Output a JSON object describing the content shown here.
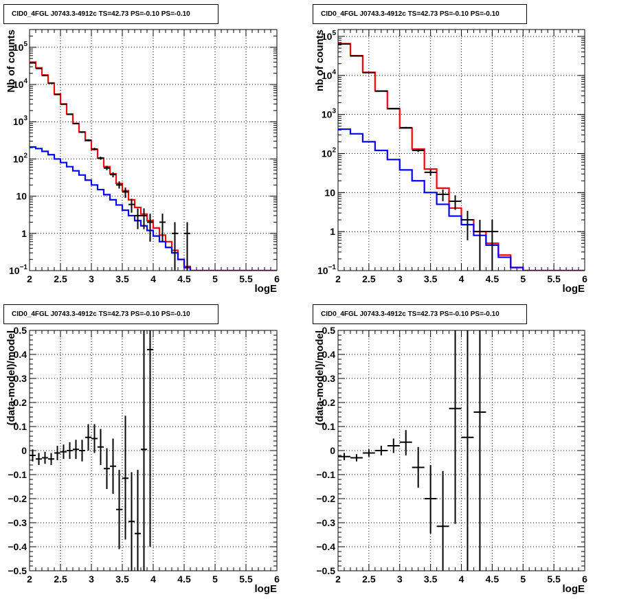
{
  "chart_data": [
    {
      "type": "step-line",
      "title": "CID0_4FGL J0743.3-4912c TS=42.73 PS=-0.10 PS=-0.10",
      "xlabel": "logE",
      "ylabel": "Nb of counts",
      "xlim": [
        2,
        6
      ],
      "ylim": [
        0.1,
        300000
      ],
      "yscale": "log",
      "grid": true,
      "x_ticks": [
        "2",
        "2.5",
        "3",
        "3.5",
        "4",
        "4.5",
        "5",
        "5.5",
        "6"
      ],
      "y_ticks": [
        {
          "v": 0.1,
          "base": "10",
          "exp": "−1"
        },
        {
          "v": 1,
          "base": "1",
          "exp": ""
        },
        {
          "v": 10,
          "base": "10",
          "exp": ""
        },
        {
          "v": 100,
          "base": "10",
          "exp": "2"
        },
        {
          "v": 1000,
          "base": "10",
          "exp": "3"
        },
        {
          "v": 10000,
          "base": "10",
          "exp": "4"
        },
        {
          "v": 100000,
          "base": "10",
          "exp": "5"
        }
      ],
      "bin_edges": [
        2.0,
        2.1,
        2.2,
        2.3,
        2.4,
        2.5,
        2.6,
        2.7,
        2.8,
        2.9,
        3.0,
        3.1,
        3.2,
        3.3,
        3.4,
        3.5,
        3.6,
        3.7,
        3.8,
        3.9,
        4.0,
        4.1,
        4.2,
        4.3,
        4.4,
        4.5,
        4.6,
        4.7,
        4.8,
        4.9,
        5.0,
        5.1,
        5.2,
        5.3,
        5.4,
        5.5,
        5.6,
        5.7,
        5.8,
        5.9,
        6.0
      ],
      "series": [
        {
          "color": "#ff0000",
          "values": [
            40000,
            28000,
            18000,
            11000,
            5500,
            3000,
            1600,
            900,
            530,
            310,
            180,
            105,
            62,
            40,
            22,
            14,
            8,
            5,
            3.3,
            2.2,
            1.4,
            0.9,
            0.6,
            0.35,
            0.2,
            0.13,
            0.1,
            0.1,
            0.1,
            0.1,
            0.1,
            0.1,
            0.1,
            0.1,
            0.1,
            0.1,
            0.1,
            0.1,
            0.1,
            0.1
          ]
        },
        {
          "color": "#0000ff",
          "values": [
            210,
            190,
            160,
            130,
            100,
            80,
            62,
            48,
            37,
            27,
            20,
            15,
            11,
            8,
            5.8,
            4.2,
            3.0,
            2.2,
            1.6,
            1.2,
            0.85,
            0.6,
            0.42,
            0.3,
            0.2,
            0.12,
            0.1,
            0.1,
            0.1,
            0.1,
            0.1,
            0.1,
            0.1,
            0.1,
            0.1,
            0.1,
            0.1,
            0.1,
            0.1,
            0.1
          ]
        }
      ],
      "points": [
        {
          "x": 2.05,
          "y": 38000,
          "lo": 37600,
          "hi": 38400,
          "xerr": 0.05
        },
        {
          "x": 2.15,
          "y": 27000,
          "lo": 26700,
          "hi": 27300,
          "xerr": 0.05
        },
        {
          "x": 2.25,
          "y": 17500,
          "lo": 17200,
          "hi": 17800,
          "xerr": 0.05
        },
        {
          "x": 2.35,
          "y": 10800,
          "lo": 10600,
          "hi": 11000,
          "xerr": 0.05
        },
        {
          "x": 2.45,
          "y": 5400,
          "lo": 5300,
          "hi": 5500,
          "xerr": 0.05
        },
        {
          "x": 2.55,
          "y": 2950,
          "lo": 2900,
          "hi": 3000,
          "xerr": 0.05
        },
        {
          "x": 2.65,
          "y": 1580,
          "lo": 1540,
          "hi": 1620,
          "xerr": 0.05
        },
        {
          "x": 2.75,
          "y": 890,
          "lo": 860,
          "hi": 920,
          "xerr": 0.05
        },
        {
          "x": 2.85,
          "y": 525,
          "lo": 500,
          "hi": 550,
          "xerr": 0.05
        },
        {
          "x": 2.95,
          "y": 320,
          "lo": 302,
          "hi": 338,
          "xerr": 0.05
        },
        {
          "x": 3.05,
          "y": 185,
          "lo": 171,
          "hi": 199,
          "xerr": 0.05
        },
        {
          "x": 3.15,
          "y": 105,
          "lo": 95,
          "hi": 115,
          "xerr": 0.05
        },
        {
          "x": 3.25,
          "y": 57,
          "lo": 50,
          "hi": 65,
          "xerr": 0.05
        },
        {
          "x": 3.35,
          "y": 38,
          "lo": 32,
          "hi": 44,
          "xerr": 0.05
        },
        {
          "x": 3.45,
          "y": 20,
          "lo": 16,
          "hi": 25,
          "xerr": 0.05
        },
        {
          "x": 3.55,
          "y": 13,
          "lo": 9,
          "hi": 17,
          "xerr": 0.05
        },
        {
          "x": 3.65,
          "y": 6,
          "lo": 3.6,
          "hi": 8.5,
          "xerr": 0.05
        },
        {
          "x": 3.75,
          "y": 3,
          "lo": 1.3,
          "hi": 4.7,
          "xerr": 0.05
        },
        {
          "x": 3.85,
          "y": 3,
          "lo": 1.3,
          "hi": 4.7,
          "xerr": 0.05
        },
        {
          "x": 3.95,
          "y": 2,
          "lo": 0.6,
          "hi": 3.4,
          "xerr": 0.05
        },
        {
          "x": 4.15,
          "y": 2,
          "lo": 0.6,
          "hi": 3.4,
          "xerr": 0.05
        },
        {
          "x": 4.35,
          "y": 1,
          "lo": 0.1,
          "hi": 2.0,
          "xerr": 0.05
        },
        {
          "x": 4.55,
          "y": 1,
          "lo": 0.1,
          "hi": 2.0,
          "xerr": 0.05
        }
      ]
    },
    {
      "type": "step-line",
      "title": "CID0_4FGL J0743.3-4912c TS=42.73 PS=-0.10 PS=-0.10",
      "xlabel": "logE",
      "ylabel": "nb of counts",
      "xlim": [
        2,
        6
      ],
      "ylim": [
        0.1,
        150000
      ],
      "yscale": "log",
      "grid": true,
      "x_ticks": [
        "2",
        "2.5",
        "3",
        "3.5",
        "4",
        "4.5",
        "5",
        "5.5",
        "6"
      ],
      "y_ticks": [
        {
          "v": 0.1,
          "base": "10",
          "exp": "−1"
        },
        {
          "v": 1,
          "base": "1",
          "exp": ""
        },
        {
          "v": 10,
          "base": "10",
          "exp": ""
        },
        {
          "v": 100,
          "base": "10",
          "exp": "2"
        },
        {
          "v": 1000,
          "base": "10",
          "exp": "3"
        },
        {
          "v": 10000,
          "base": "10",
          "exp": "4"
        },
        {
          "v": 100000,
          "base": "10",
          "exp": "5"
        }
      ],
      "bin_edges": [
        2.0,
        2.2,
        2.4,
        2.6,
        2.8,
        3.0,
        3.2,
        3.4,
        3.6,
        3.8,
        4.0,
        4.2,
        4.4,
        4.6,
        4.8,
        5.0,
        5.2,
        5.4,
        5.6,
        5.8,
        6.0
      ],
      "series": [
        {
          "color": "#ff0000",
          "values": [
            65000,
            32000,
            12000,
            4000,
            1400,
            450,
            130,
            40,
            13,
            4,
            2,
            1,
            0.5,
            0.25,
            0.12,
            0.1,
            0.1,
            0.1,
            0.1,
            0.1
          ]
        },
        {
          "color": "#0000ff",
          "values": [
            420,
            320,
            200,
            120,
            70,
            38,
            20,
            10,
            5,
            2.5,
            1.5,
            0.8,
            0.45,
            0.22,
            0.12,
            0.1,
            0.1,
            0.1,
            0.1,
            0.1
          ]
        }
      ],
      "points": [
        {
          "x": 2.1,
          "y": 64000,
          "lo": 63500,
          "hi": 64500,
          "xerr": 0.1
        },
        {
          "x": 2.3,
          "y": 31500,
          "lo": 31100,
          "hi": 31900,
          "xerr": 0.1
        },
        {
          "x": 2.5,
          "y": 11800,
          "lo": 11600,
          "hi": 12000,
          "xerr": 0.1
        },
        {
          "x": 2.7,
          "y": 3950,
          "lo": 3880,
          "hi": 4020,
          "xerr": 0.1
        },
        {
          "x": 2.9,
          "y": 1420,
          "lo": 1380,
          "hi": 1460,
          "xerr": 0.1
        },
        {
          "x": 3.1,
          "y": 460,
          "lo": 440,
          "hi": 480,
          "xerr": 0.1
        },
        {
          "x": 3.3,
          "y": 120,
          "lo": 109,
          "hi": 131,
          "xerr": 0.1
        },
        {
          "x": 3.5,
          "y": 33,
          "lo": 27,
          "hi": 39,
          "xerr": 0.1
        },
        {
          "x": 3.7,
          "y": 9,
          "lo": 6,
          "hi": 12,
          "xerr": 0.1
        },
        {
          "x": 3.9,
          "y": 6,
          "lo": 3.6,
          "hi": 8.5,
          "xerr": 0.1
        },
        {
          "x": 4.1,
          "y": 2,
          "lo": 0.6,
          "hi": 3.4,
          "xerr": 0.1
        },
        {
          "x": 4.3,
          "y": 1,
          "lo": 0.1,
          "hi": 2.0,
          "xerr": 0.1
        },
        {
          "x": 4.5,
          "y": 1,
          "lo": 0.1,
          "hi": 2.0,
          "xerr": 0.1
        }
      ]
    },
    {
      "type": "scatter",
      "title": "CID0_4FGL J0743.3-4912c TS=42.73 PS=-0.10 PS=-0.10",
      "xlabel": "logE",
      "ylabel": "(data-model)/model",
      "xlim": [
        2,
        6
      ],
      "ylim": [
        -0.5,
        0.5
      ],
      "yscale": "linear",
      "grid": true,
      "x_ticks": [
        "2",
        "2.5",
        "3",
        "3.5",
        "4",
        "4.5",
        "5",
        "5.5",
        "6"
      ],
      "y_ticks": [
        "−0.5",
        "−0.4",
        "−0.3",
        "−0.2",
        "−0.1",
        "0",
        "0.1",
        "0.2",
        "0.3",
        "0.4",
        "0.5"
      ],
      "points": [
        {
          "x": 2.05,
          "y": -0.02,
          "lo": -0.045,
          "hi": 0.005,
          "xerr": 0.05
        },
        {
          "x": 2.15,
          "y": -0.035,
          "lo": -0.06,
          "hi": -0.01,
          "xerr": 0.05
        },
        {
          "x": 2.25,
          "y": -0.03,
          "lo": -0.055,
          "hi": -0.005,
          "xerr": 0.05
        },
        {
          "x": 2.35,
          "y": -0.035,
          "lo": -0.06,
          "hi": -0.01,
          "xerr": 0.05
        },
        {
          "x": 2.45,
          "y": -0.01,
          "lo": -0.04,
          "hi": 0.02,
          "xerr": 0.05
        },
        {
          "x": 2.55,
          "y": -0.005,
          "lo": -0.035,
          "hi": 0.025,
          "xerr": 0.05
        },
        {
          "x": 2.65,
          "y": 0.0,
          "lo": -0.035,
          "hi": 0.035,
          "xerr": 0.05
        },
        {
          "x": 2.75,
          "y": 0.005,
          "lo": -0.035,
          "hi": 0.045,
          "xerr": 0.05
        },
        {
          "x": 2.85,
          "y": 0.0,
          "lo": -0.045,
          "hi": 0.045,
          "xerr": 0.05
        },
        {
          "x": 2.95,
          "y": 0.055,
          "lo": 0.0,
          "hi": 0.11,
          "xerr": 0.05
        },
        {
          "x": 3.05,
          "y": 0.05,
          "lo": -0.01,
          "hi": 0.11,
          "xerr": 0.05
        },
        {
          "x": 3.15,
          "y": 0.015,
          "lo": -0.06,
          "hi": 0.09,
          "xerr": 0.05
        },
        {
          "x": 3.25,
          "y": -0.075,
          "lo": -0.16,
          "hi": 0.01,
          "xerr": 0.05
        },
        {
          "x": 3.35,
          "y": -0.065,
          "lo": -0.18,
          "hi": 0.05,
          "xerr": 0.05
        },
        {
          "x": 3.45,
          "y": -0.245,
          "lo": -0.41,
          "hi": -0.08,
          "xerr": 0.05
        },
        {
          "x": 3.55,
          "y": -0.115,
          "lo": -0.37,
          "hi": 0.145,
          "xerr": 0.05
        },
        {
          "x": 3.65,
          "y": -0.295,
          "lo": -0.5,
          "hi": -0.09,
          "xerr": 0.05
        },
        {
          "x": 3.75,
          "y": -0.345,
          "lo": -0.5,
          "hi": -0.08,
          "xerr": 0.05
        },
        {
          "x": 3.85,
          "y": 0.005,
          "lo": -0.5,
          "hi": 0.5,
          "xerr": 0.05
        },
        {
          "x": 3.95,
          "y": 0.42,
          "lo": -0.4,
          "hi": 0.5,
          "xerr": 0.05
        }
      ]
    },
    {
      "type": "scatter",
      "title": "CID0_4FGL J0743.3-4912c TS=42.73 PS=-0.10 PS=-0.10",
      "xlabel": "logE",
      "ylabel": "(data-model)/model",
      "xlim": [
        2,
        6
      ],
      "ylim": [
        -0.5,
        0.5
      ],
      "yscale": "linear",
      "grid": true,
      "x_ticks": [
        "2",
        "2.5",
        "3",
        "3.5",
        "4",
        "4.5",
        "5",
        "5.5",
        "6"
      ],
      "y_ticks": [
        "−0.5",
        "−0.4",
        "−0.3",
        "−0.2",
        "−0.1",
        "0",
        "0.1",
        "0.2",
        "0.3",
        "0.4",
        "0.5"
      ],
      "points": [
        {
          "x": 2.1,
          "y": -0.025,
          "lo": -0.04,
          "hi": -0.01,
          "xerr": 0.1
        },
        {
          "x": 2.3,
          "y": -0.03,
          "lo": -0.045,
          "hi": -0.015,
          "xerr": 0.1
        },
        {
          "x": 2.5,
          "y": -0.01,
          "lo": -0.025,
          "hi": 0.005,
          "xerr": 0.1
        },
        {
          "x": 2.7,
          "y": 0.0,
          "lo": -0.02,
          "hi": 0.02,
          "xerr": 0.1
        },
        {
          "x": 2.9,
          "y": 0.02,
          "lo": -0.01,
          "hi": 0.05,
          "xerr": 0.1
        },
        {
          "x": 3.1,
          "y": 0.035,
          "lo": -0.02,
          "hi": 0.085,
          "xerr": 0.1
        },
        {
          "x": 3.3,
          "y": -0.07,
          "lo": -0.155,
          "hi": 0.015,
          "xerr": 0.1
        },
        {
          "x": 3.5,
          "y": -0.2,
          "lo": -0.345,
          "hi": -0.06,
          "xerr": 0.1
        },
        {
          "x": 3.7,
          "y": -0.315,
          "lo": -0.5,
          "hi": -0.085,
          "xerr": 0.1
        },
        {
          "x": 3.9,
          "y": 0.175,
          "lo": -0.305,
          "hi": 0.5,
          "xerr": 0.1
        },
        {
          "x": 4.1,
          "y": 0.055,
          "lo": -0.5,
          "hi": 0.5,
          "xerr": 0.1
        },
        {
          "x": 4.3,
          "y": 0.16,
          "lo": -0.5,
          "hi": 0.5,
          "xerr": 0.1
        }
      ]
    }
  ]
}
